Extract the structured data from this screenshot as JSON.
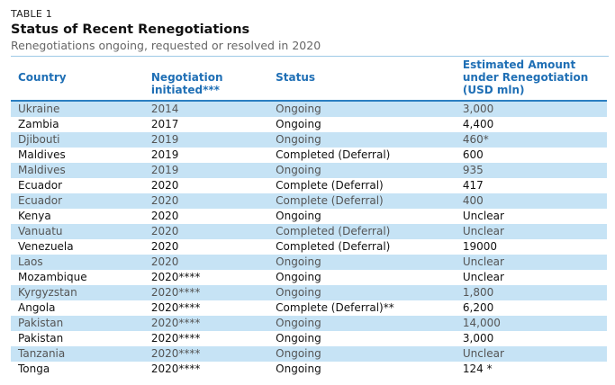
{
  "table_label": "TABLE 1",
  "title": "Status of Recent Renegotiations",
  "subtitle": "Renegotiations ongoing, requested or resolved in 2020",
  "headers": {
    "country": "Country",
    "initiated_line1": "Negotiation",
    "initiated_line2": "initiated***",
    "status": "Status",
    "amount_line1": "Estimated Amount",
    "amount_line2": "under Renegotiation",
    "amount_line3": "(USD mln)"
  },
  "rows": [
    {
      "country": "Ukraine",
      "initiated": "2014",
      "status": "Ongoing",
      "amount": "3,000"
    },
    {
      "country": "Zambia",
      "initiated": "2017",
      "status": "Ongoing",
      "amount": "4,400"
    },
    {
      "country": "Djibouti",
      "initiated": "2019",
      "status": "Ongoing",
      "amount": "460*"
    },
    {
      "country": "Maldives",
      "initiated": "2019",
      "status": "Completed (Deferral)",
      "amount": "600"
    },
    {
      "country": "Maldives",
      "initiated": "2019",
      "status": "Ongoing",
      "amount": "935"
    },
    {
      "country": "Ecuador",
      "initiated": "2020",
      "status": "Complete (Deferral)",
      "amount": "417"
    },
    {
      "country": "Ecuador",
      "initiated": "2020",
      "status": "Complete (Deferral)",
      "amount": "400"
    },
    {
      "country": "Kenya",
      "initiated": "2020",
      "status": "Ongoing",
      "amount": "Unclear"
    },
    {
      "country": "Vanuatu",
      "initiated": "2020",
      "status": "Completed (Deferral)",
      "amount": "Unclear"
    },
    {
      "country": "Venezuela",
      "initiated": "2020",
      "status": "Completed (Deferral)",
      "amount": "19000"
    },
    {
      "country": "Laos",
      "initiated": "2020",
      "status": "Ongoing",
      "amount": "Unclear"
    },
    {
      "country": "Mozambique",
      "initiated": "2020****",
      "status": "Ongoing",
      "amount": "Unclear"
    },
    {
      "country": "Kyrgyzstan",
      "initiated": "2020****",
      "status": "Ongoing",
      "amount": "1,800"
    },
    {
      "country": "Angola",
      "initiated": "2020****",
      "status": "Complete (Deferral)**",
      "amount": "6,200"
    },
    {
      "country": "Pakistan",
      "initiated": "2020****",
      "status": "Ongoing",
      "amount": "14,000"
    },
    {
      "country": "Pakistan",
      "initiated": "2020****",
      "status": "Ongoing",
      "amount": "3,000"
    },
    {
      "country": "Tanzania",
      "initiated": "2020****",
      "status": "Ongoing",
      "amount": "Unclear"
    },
    {
      "country": "Tonga",
      "initiated": "2020****",
      "status": "Ongoing",
      "amount": "124 *"
    }
  ]
}
